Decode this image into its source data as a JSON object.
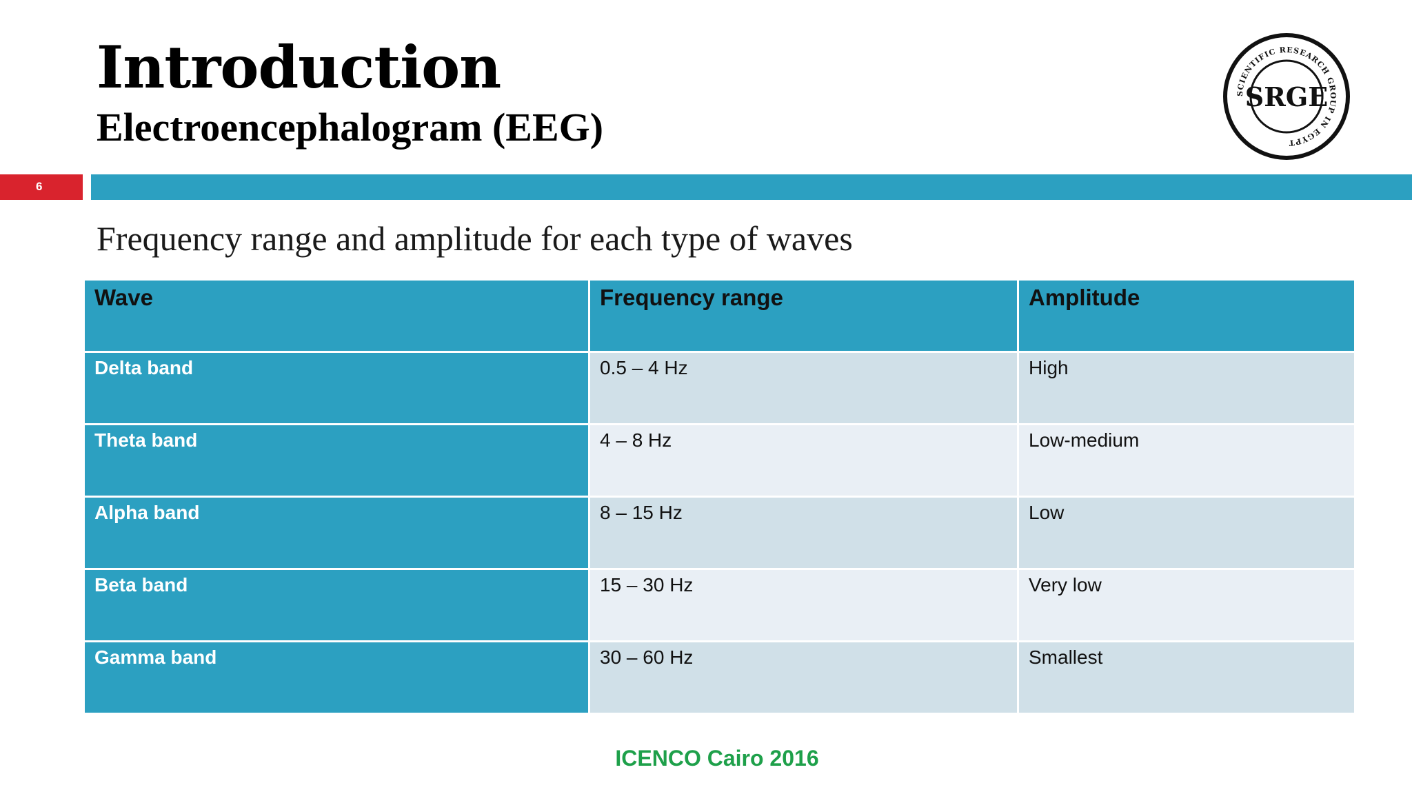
{
  "slide": {
    "title": "Introduction",
    "subtitle": "Electroencephalogram (EEG)",
    "page_number": "6",
    "heading": "Frequency range and amplitude for each type of waves",
    "footer": "ICENCO Cairo 2016"
  },
  "logo": {
    "text": "SRGE",
    "ring_text": "SCIENTIFIC RESEARCH GROUP IN EGYPT"
  },
  "table": {
    "headers": [
      "Wave",
      "Frequency range",
      "Amplitude"
    ],
    "rows": [
      {
        "wave": "Delta band",
        "frequency": "0.5 – 4 Hz",
        "amplitude": "High"
      },
      {
        "wave": "Theta band",
        "frequency": "4 – 8 Hz",
        "amplitude": "Low-medium"
      },
      {
        "wave": "Alpha band",
        "frequency": "8 – 15 Hz",
        "amplitude": "Low"
      },
      {
        "wave": "Beta band",
        "frequency": "15 – 30 Hz",
        "amplitude": "Very low"
      },
      {
        "wave": "Gamma band",
        "frequency": "30 – 60 Hz",
        "amplitude": "Smallest"
      }
    ]
  },
  "colors": {
    "accent_teal": "#2ca0c1",
    "page_number_red": "#d9232d",
    "footer_green": "#1ea04a",
    "row_odd": "#d0e0e8",
    "row_even": "#e9eff5"
  }
}
